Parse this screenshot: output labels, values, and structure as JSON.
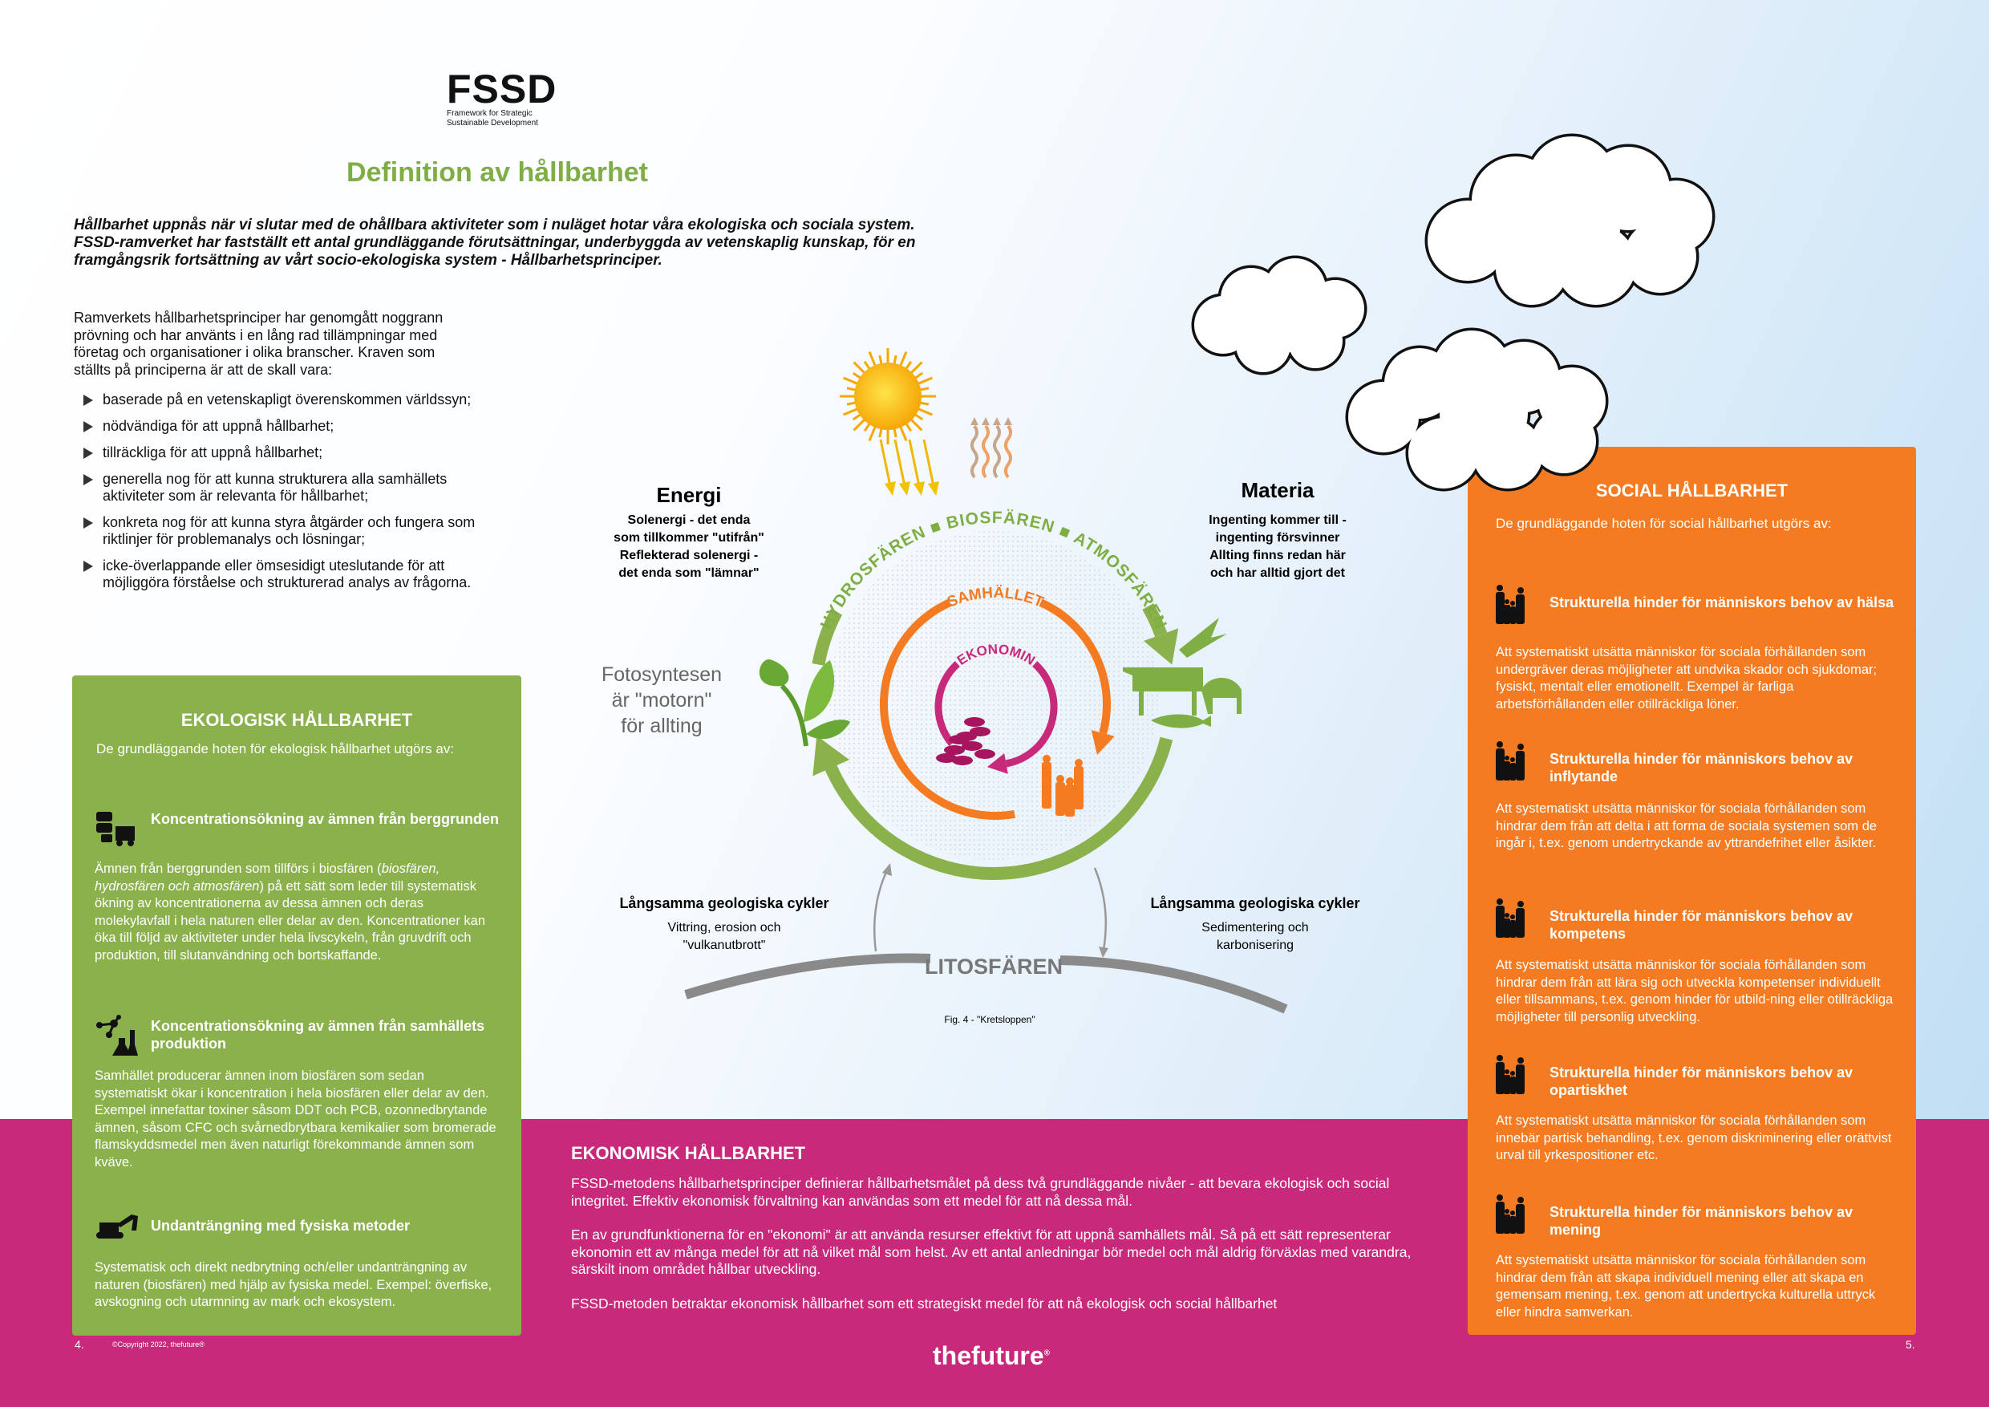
{
  "logo": {
    "name": "FSSD",
    "tagline_1": "Framework for Strategic",
    "tagline_2": "Sustainable Development"
  },
  "title": "Definition av hållbarhet",
  "intro_lines": [
    "Hållbarhet uppnås när vi slutar med de ohållbara aktiviteter som i nuläget hotar våra ekologiska och sociala system.",
    "FSSD-ramverket har fastställt ett antal grundläggande förutsättningar, underbyggda av vetenskaplig kunskap, för en",
    "framgångsrik fortsättning av vårt socio-ekologiska system - Hållbarhetsprinciper."
  ],
  "lead": "Ramverkets hållbarhetsprinciper har genomgått noggrann prövning och har använts i en lång rad tillämpningar med företag och organisationer i olika branscher. Kraven som ställts på principerna är att de skall vara:",
  "bullets": [
    "baserade på en vetenskapligt överenskommen världssyn;",
    "nödvändiga för att uppnå hållbarhet;",
    "tillräckliga för att uppnå hållbarhet;",
    "generella nog för att kunna strukturera alla samhällets aktiviteter som är relevanta för hållbarhet;",
    "konkreta nog för att kunna styra åtgärder och fungera som riktlinjer för problemanalys och lösningar;",
    "icke-överlappande eller ömsesidigt uteslutande för att möjliggöra förståelse och strukturerad analys av frågorna."
  ],
  "ecological": {
    "title": "EKOLOGISK HÅLLBARHET",
    "subtitle": "De grundläggande hoten för ekologisk hållbarhet utgörs av:",
    "items": [
      {
        "icon": "mining-barrels-icon",
        "heading": "Koncentrationsökning av ämnen från berggrunden",
        "body_pre": "Ämnen från berggrunden som tillförs i biosfären (",
        "body_em": "biosfären, hydrosfären och atmosfären",
        "body_post": ") på ett sätt som leder till systematisk ökning av koncentrationerna av dessa ämnen och deras molekylavfall i hela naturen eller delar av den. Koncentrationer kan öka till följd av aktiviteter under hela livscykeln, från gruvdrift och produktion, till slutanvändning och bortskaffande."
      },
      {
        "icon": "chemistry-molecule-icon",
        "heading": "Koncentrationsökning av ämnen från samhällets produktion",
        "body": "Samhället producerar ämnen inom biosfären som sedan systematiskt ökar i koncentration i hela biosfären eller delar av den. Exempel innefattar toxiner såsom DDT och PCB, ozonnedbrytande ämnen, såsom CFC och svårnedbrytbara kemikalier som bromerade flamskyddsmedel men även naturligt förekommande ämnen som kväve."
      },
      {
        "icon": "excavator-icon",
        "heading": "Undanträngning med fysiska metoder",
        "body": "Systematisk och direkt nedbrytning och/eller undanträngning av naturen (biosfären) med hjälp av fysiska medel. Exempel: överfiske, avskogning och utarmning av mark och ekosystem."
      }
    ]
  },
  "social": {
    "title": "SOCIAL HÅLLBARHET",
    "subtitle": "De grundläggande hoten för social hållbarhet utgörs av:",
    "items": [
      {
        "icon": "family-icon",
        "heading": "Strukturella hinder för människors behov av hälsa",
        "body": "Att systematiskt utsätta människor för sociala förhållanden som undergräver deras möjligheter att undvika skador och sjukdomar; fysiskt, mentalt eller emotionellt. Exempel är farliga arbetsförhållanden eller otillräckliga löner."
      },
      {
        "icon": "family-icon",
        "heading": "Strukturella hinder för människors behov av inflytande",
        "body": "Att systematiskt utsätta människor för sociala förhållanden som hindrar dem från att delta i att forma de sociala systemen som de ingår i, t.ex. genom undertryckande av yttrandefrihet eller åsikter."
      },
      {
        "icon": "family-icon",
        "heading": "Strukturella hinder för människors behov av kompetens",
        "body": "Att systematiskt utsätta människor för sociala förhållanden som hindrar dem från att lära sig och utveckla kompetenser individuellt eller tillsammans, t.ex. genom hinder för utbild-ning eller otillräckliga möjligheter till personlig utveckling."
      },
      {
        "icon": "family-icon",
        "heading": "Strukturella hinder för människors behov av opartiskhet",
        "body": "Att systematiskt utsätta människor för sociala förhållanden som innebär partisk behandling, t.ex. genom diskriminering eller orättvist urval till yrkespositioner etc."
      },
      {
        "icon": "family-icon",
        "heading": "Strukturella hinder för människors behov av mening",
        "body": "Att systematiskt utsätta människor för sociala förhållanden som hindrar dem från att skapa individuell mening eller att skapa en gemensam mening, t.ex. genom att undertrycka kulturella uttryck eller hindra samverkan."
      }
    ]
  },
  "economic": {
    "title": "EKONOMISK HÅLLBARHET",
    "paragraphs": [
      "FSSD-metodens hållbarhetsprinciper definierar hållbarhetsmålet på dess två grundläggande nivåer - att bevara ekologisk och social integritet. Effektiv ekonomisk förvaltning kan användas som ett medel för att nå dessa mål.",
      "En av grundfunktionerna för en \"ekonomi\" är att använda resurser effektivt för att uppnå samhällets mål. Så på ett sätt representerar ekonomin ett av många medel för att nå vilket mål som helst. Av ett antal anledningar bör medel och mål aldrig förväxlas med varandra, särskilt inom området hållbar utveckling.",
      "FSSD-metoden betraktar ekonomisk hållbarhet som ett strategiskt medel för att nå ekologisk och social hållbarhet"
    ]
  },
  "diagram": {
    "energy": {
      "title": "Energi",
      "lines": [
        "Solenergi - det enda",
        "som tillkommer \"utifrån\"",
        "Reflekterad solenergi -",
        "det enda som \"lämnar\""
      ]
    },
    "matter": {
      "title": "Materia",
      "lines": [
        "Ingenting kommer till -",
        "ingenting försvinner",
        "Allting finns redan här",
        "och har alltid gjort det"
      ]
    },
    "photosynthesis": [
      "Fotosyntesen",
      "är \"motorn\"",
      "för allting"
    ],
    "spheres": [
      "HYDROSFÄREN",
      "BIOSFÄREN",
      "ATMOSFÄREN"
    ],
    "society": "SAMHÄLLET",
    "economy": "EKONOMIN",
    "lithosphere": "LITOSFÄREN",
    "left_cycle": {
      "title": "Långsamma geologiska cykler",
      "lines": [
        "Vittring, erosion och",
        "\"vulkanutbrott\""
      ]
    },
    "right_cycle": {
      "title": "Långsamma geologiska cykler",
      "lines": [
        "Sedimentering och",
        "karbonisering"
      ]
    },
    "caption": "Fig. 4 - \"Kretsloppen\""
  },
  "footer": {
    "page_left": "4.",
    "copyright": "©Copyright 2022, thefuture®",
    "page_right": "5.",
    "brand": "thefuture",
    "brand_mark": "®"
  },
  "colors": {
    "green": "#8ab14c",
    "orange": "#f47b21",
    "magenta": "#c8297a",
    "title_green": "#7fae45",
    "gray": "#8a8a8a"
  }
}
